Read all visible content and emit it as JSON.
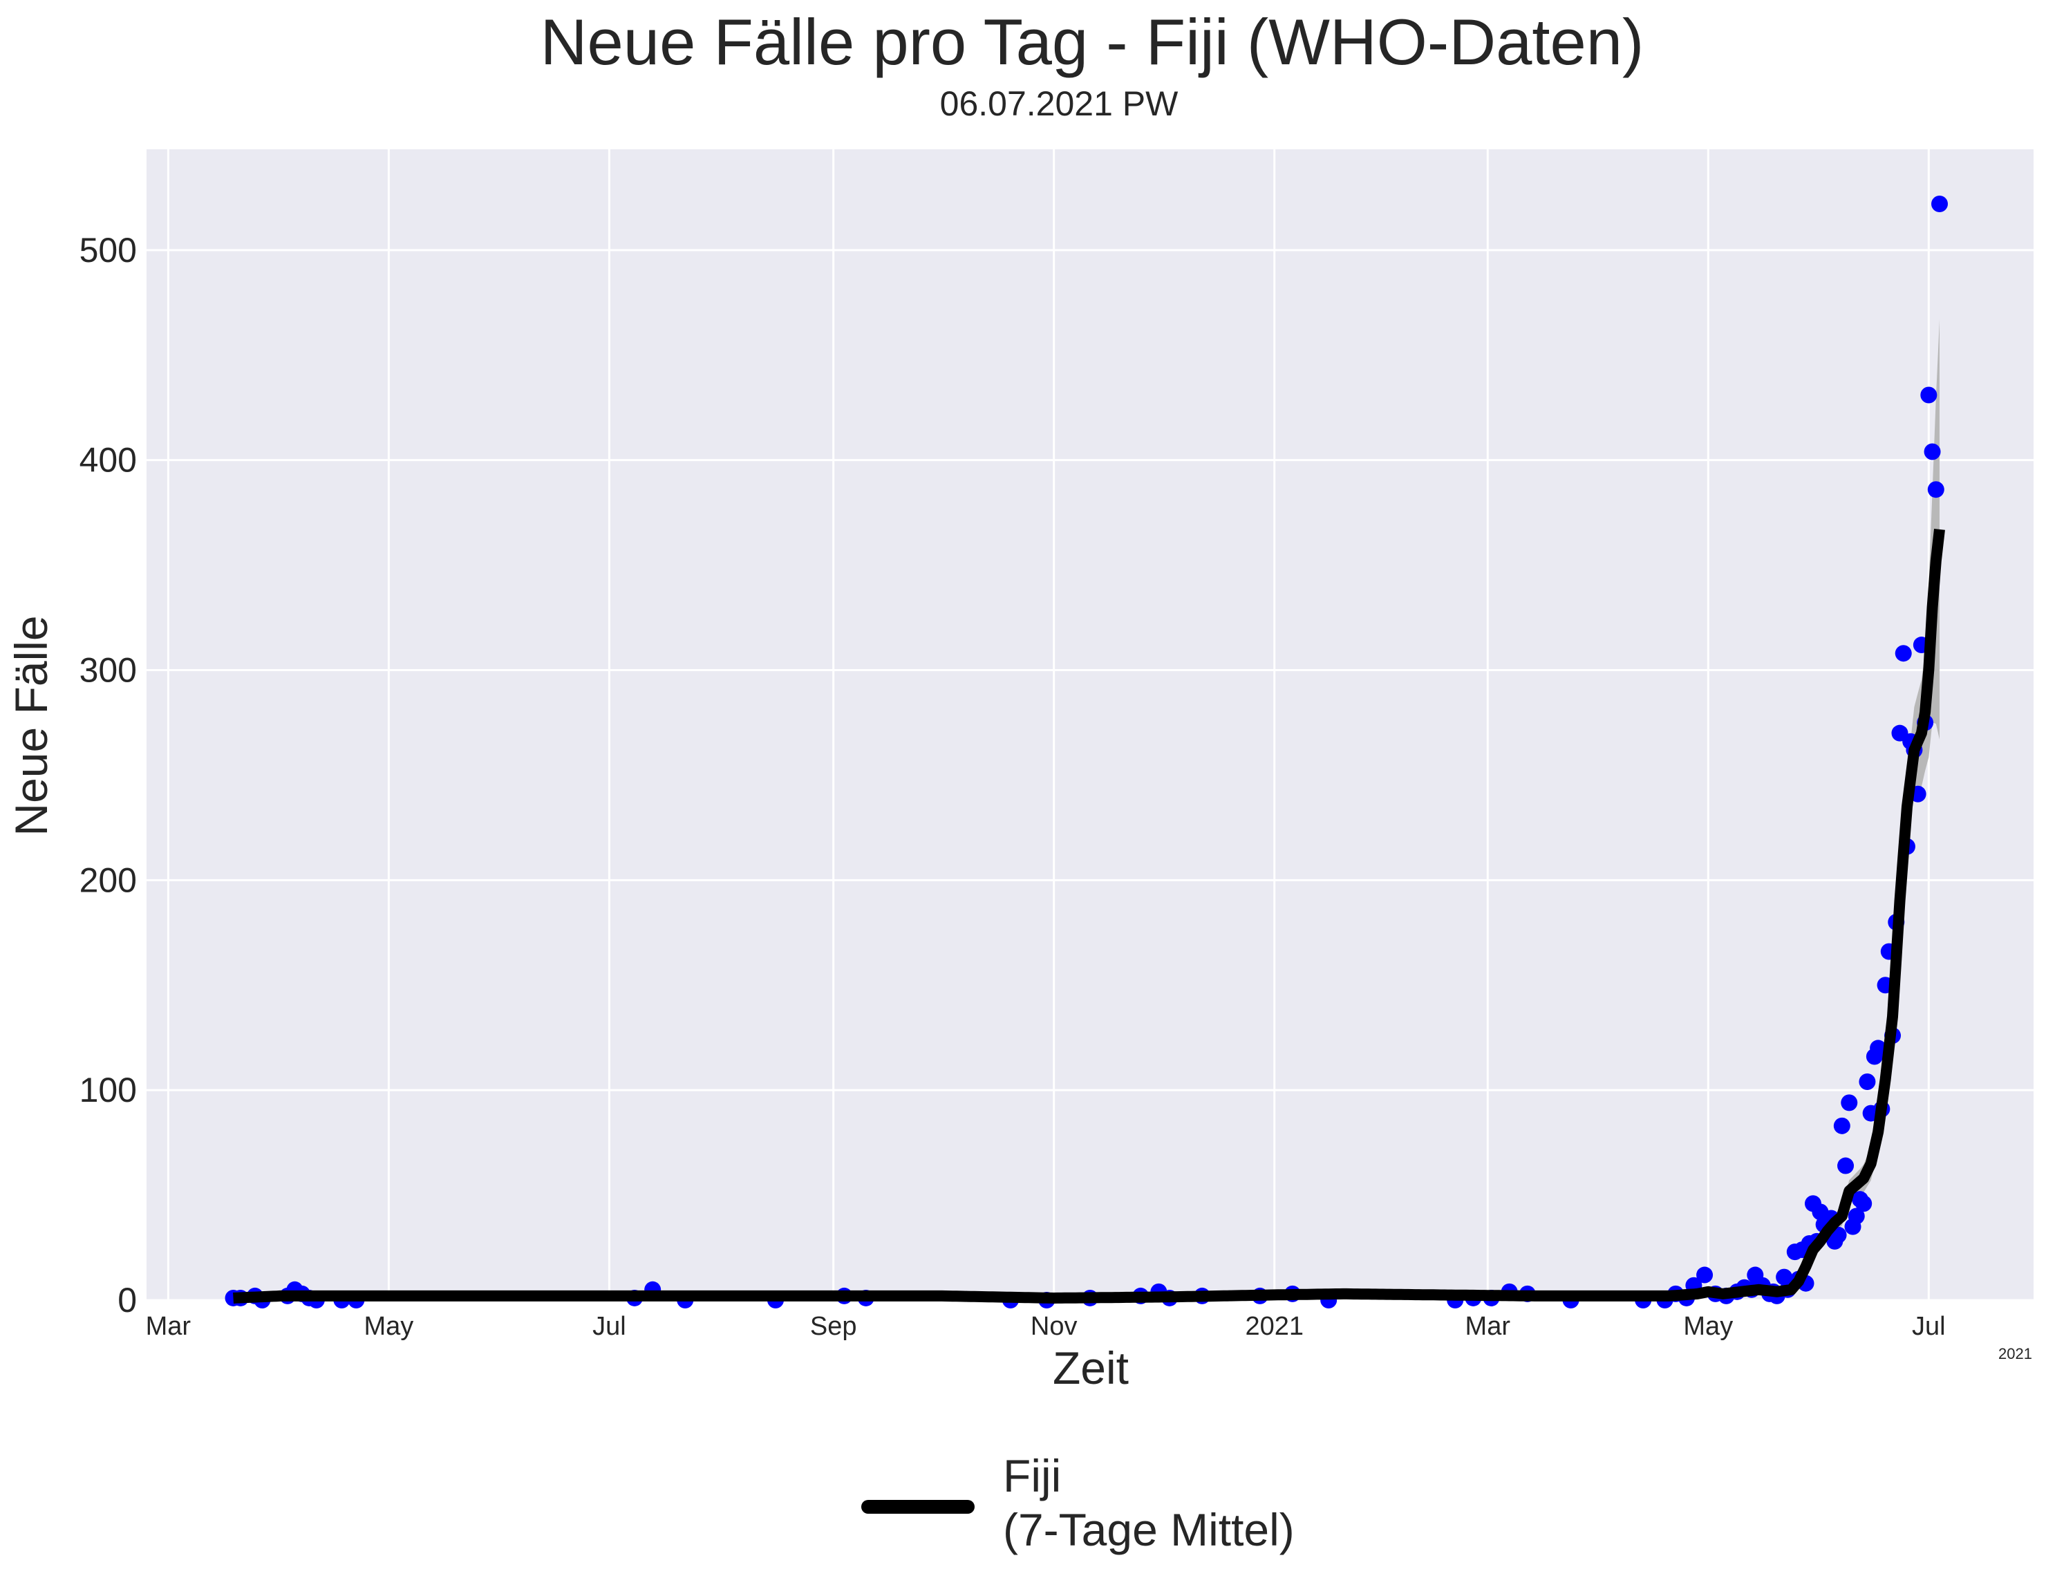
{
  "chart_data": {
    "type": "line",
    "title": "Neue Fälle pro Tag - Fiji (WHO-Daten)",
    "subtitle": "06.07.2021 PW",
    "xlabel": "Zeit",
    "ylabel": "Neue Fälle",
    "x_axis_offset_label": "2021",
    "x_tick_labels": [
      {
        "date": "2020-03-01",
        "label": "Mar"
      },
      {
        "date": "2020-05-01",
        "label": "May"
      },
      {
        "date": "2020-07-01",
        "label": "Jul"
      },
      {
        "date": "2020-09-01",
        "label": "Sep"
      },
      {
        "date": "2020-11-01",
        "label": "Nov"
      },
      {
        "date": "2021-01-01",
        "label": "2021"
      },
      {
        "date": "2021-03-01",
        "label": "Mar"
      },
      {
        "date": "2021-05-01",
        "label": "May"
      },
      {
        "date": "2021-07-01",
        "label": "Jul"
      }
    ],
    "xlim": [
      "2020-02-24",
      "2021-07-30"
    ],
    "ylim": [
      0,
      548
    ],
    "y_ticks": [
      0,
      100,
      200,
      300,
      400,
      500
    ],
    "grid": true,
    "legend_placement": "bottom-center",
    "background_color": "#eaeaf2",
    "grid_color": "#ffffff",
    "point_color": "#0000ff",
    "line_color": "#000000",
    "band_color": "#b8b8b8",
    "legend_line1": "Fiji",
    "legend_line2": "(7-Tage Mittel)",
    "daily_cases": [
      [
        "2020-03-19",
        1
      ],
      [
        "2020-03-21",
        1
      ],
      [
        "2020-03-25",
        2
      ],
      [
        "2020-03-27",
        0
      ],
      [
        "2020-04-03",
        2
      ],
      [
        "2020-04-05",
        5
      ],
      [
        "2020-04-07",
        3
      ],
      [
        "2020-04-09",
        1
      ],
      [
        "2020-04-11",
        0
      ],
      [
        "2020-04-18",
        0
      ],
      [
        "2020-04-22",
        0
      ],
      [
        "2020-07-08",
        1
      ],
      [
        "2020-07-13",
        5
      ],
      [
        "2020-07-22",
        0
      ],
      [
        "2020-08-16",
        0
      ],
      [
        "2020-09-04",
        2
      ],
      [
        "2020-09-10",
        1
      ],
      [
        "2020-10-20",
        0
      ],
      [
        "2020-10-30",
        0
      ],
      [
        "2020-11-11",
        1
      ],
      [
        "2020-11-25",
        2
      ],
      [
        "2020-11-30",
        4
      ],
      [
        "2020-12-03",
        1
      ],
      [
        "2020-12-12",
        2
      ],
      [
        "2020-12-28",
        2
      ],
      [
        "2021-01-06",
        3
      ],
      [
        "2021-01-16",
        0
      ],
      [
        "2021-02-20",
        0
      ],
      [
        "2021-02-25",
        1
      ],
      [
        "2021-03-02",
        1
      ],
      [
        "2021-03-07",
        4
      ],
      [
        "2021-03-12",
        3
      ],
      [
        "2021-03-24",
        0
      ],
      [
        "2021-04-13",
        0
      ],
      [
        "2021-04-19",
        0
      ],
      [
        "2021-04-22",
        3
      ],
      [
        "2021-04-25",
        1
      ],
      [
        "2021-04-27",
        7
      ],
      [
        "2021-04-30",
        12
      ],
      [
        "2021-05-03",
        3
      ],
      [
        "2021-05-06",
        2
      ],
      [
        "2021-05-09",
        4
      ],
      [
        "2021-05-11",
        6
      ],
      [
        "2021-05-13",
        5
      ],
      [
        "2021-05-14",
        12
      ],
      [
        "2021-05-16",
        7
      ],
      [
        "2021-05-18",
        3
      ],
      [
        "2021-05-19",
        4
      ],
      [
        "2021-05-20",
        2
      ],
      [
        "2021-05-22",
        11
      ],
      [
        "2021-05-23",
        5
      ],
      [
        "2021-05-25",
        23
      ],
      [
        "2021-05-26",
        10
      ],
      [
        "2021-05-27",
        24
      ],
      [
        "2021-05-28",
        8
      ],
      [
        "2021-05-29",
        27
      ],
      [
        "2021-05-30",
        46
      ],
      [
        "2021-05-31",
        28
      ],
      [
        "2021-06-01",
        42
      ],
      [
        "2021-06-02",
        36
      ],
      [
        "2021-06-03",
        34
      ],
      [
        "2021-06-04",
        39
      ],
      [
        "2021-06-05",
        28
      ],
      [
        "2021-06-06",
        31
      ],
      [
        "2021-06-07",
        83
      ],
      [
        "2021-06-08",
        64
      ],
      [
        "2021-06-09",
        94
      ],
      [
        "2021-06-10",
        35
      ],
      [
        "2021-06-11",
        40
      ],
      [
        "2021-06-12",
        48
      ],
      [
        "2021-06-13",
        46
      ],
      [
        "2021-06-14",
        104
      ],
      [
        "2021-06-15",
        89
      ],
      [
        "2021-06-16",
        116
      ],
      [
        "2021-06-17",
        120
      ],
      [
        "2021-06-18",
        91
      ],
      [
        "2021-06-19",
        150
      ],
      [
        "2021-06-20",
        166
      ],
      [
        "2021-06-21",
        126
      ],
      [
        "2021-06-22",
        180
      ],
      [
        "2021-06-23",
        270
      ],
      [
        "2021-06-24",
        308
      ],
      [
        "2021-06-25",
        216
      ],
      [
        "2021-06-26",
        266
      ],
      [
        "2021-06-27",
        262
      ],
      [
        "2021-06-28",
        241
      ],
      [
        "2021-06-29",
        312
      ],
      [
        "2021-06-30",
        275
      ],
      [
        "2021-07-01",
        431
      ],
      [
        "2021-07-02",
        404
      ],
      [
        "2021-07-03",
        386
      ],
      [
        "2021-07-04",
        522
      ]
    ],
    "rolling_mean_7day": [
      [
        "2020-03-19",
        1
      ],
      [
        "2020-04-01",
        2
      ],
      [
        "2020-04-15",
        2
      ],
      [
        "2020-06-01",
        2
      ],
      [
        "2020-08-01",
        2
      ],
      [
        "2020-10-01",
        2
      ],
      [
        "2020-11-01",
        1
      ],
      [
        "2020-12-01",
        1.5
      ],
      [
        "2021-01-01",
        2.5
      ],
      [
        "2021-01-20",
        3
      ],
      [
        "2021-02-15",
        2.5
      ],
      [
        "2021-03-15",
        2
      ],
      [
        "2021-04-20",
        2
      ],
      [
        "2021-04-28",
        3
      ],
      [
        "2021-05-01",
        4
      ],
      [
        "2021-05-05",
        3
      ],
      [
        "2021-05-10",
        4
      ],
      [
        "2021-05-15",
        5
      ],
      [
        "2021-05-20",
        4
      ],
      [
        "2021-05-24",
        5
      ],
      [
        "2021-05-26",
        9
      ],
      [
        "2021-05-28",
        16
      ],
      [
        "2021-05-30",
        24
      ],
      [
        "2021-06-01",
        28
      ],
      [
        "2021-06-03",
        33
      ],
      [
        "2021-06-05",
        37
      ],
      [
        "2021-06-07",
        40
      ],
      [
        "2021-06-09",
        52
      ],
      [
        "2021-06-11",
        55
      ],
      [
        "2021-06-13",
        58
      ],
      [
        "2021-06-15",
        65
      ],
      [
        "2021-06-17",
        80
      ],
      [
        "2021-06-19",
        105
      ],
      [
        "2021-06-21",
        135
      ],
      [
        "2021-06-23",
        190
      ],
      [
        "2021-06-25",
        235
      ],
      [
        "2021-06-27",
        262
      ],
      [
        "2021-06-29",
        270
      ],
      [
        "2021-06-30",
        280
      ],
      [
        "2021-07-01",
        300
      ],
      [
        "2021-07-02",
        330
      ],
      [
        "2021-07-03",
        352
      ],
      [
        "2021-07-04",
        367
      ]
    ],
    "band_halfwidth": [
      [
        "2021-05-25",
        3
      ],
      [
        "2021-06-05",
        4
      ],
      [
        "2021-06-12",
        6
      ],
      [
        "2021-06-18",
        10
      ],
      [
        "2021-06-22",
        14
      ],
      [
        "2021-06-26",
        18
      ],
      [
        "2021-06-30",
        28
      ],
      [
        "2021-07-02",
        55
      ],
      [
        "2021-07-04",
        100
      ]
    ]
  }
}
